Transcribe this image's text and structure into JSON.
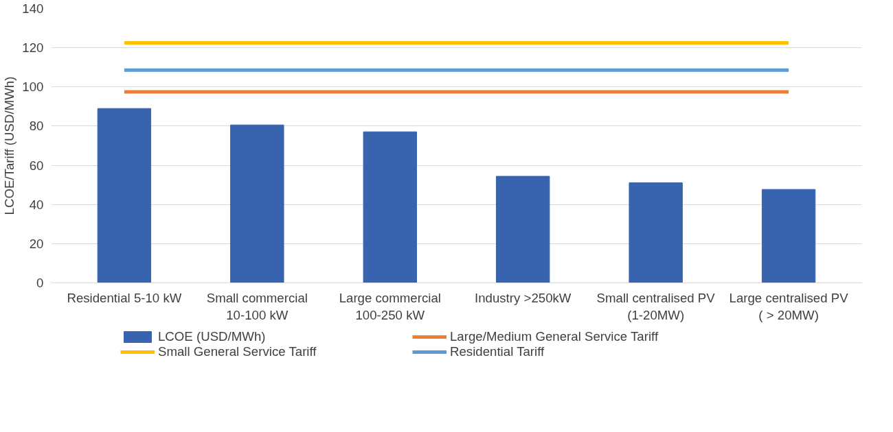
{
  "chart_data": {
    "type": "bar",
    "ylabel": "LCOE/Tariff (USD/MWh)",
    "categories": [
      "Residential 5-10 kW",
      "Small commercial\n10-100 kW",
      "Large commercial\n100-250 kW",
      "Industry >250kW",
      "Small centralised PV\n(1-20MW)",
      "Large centralised PV\n( > 20MW)"
    ],
    "series": [
      {
        "name": "LCOE (USD/MWh)",
        "color": "#3863ae",
        "values": [
          89,
          80.6,
          77.1,
          54.4,
          51.1,
          47.7
        ]
      },
      {
        "name": "Large/Medium General Service Tariff",
        "type": "line",
        "color": "#ed7d31",
        "values": [
          97.5,
          97.5,
          97.5,
          97.5,
          97.5,
          97.5
        ]
      },
      {
        "name": "Small General Service Tariff",
        "type": "line",
        "color": "#ffc000",
        "values": [
          122.5,
          122.5,
          122.5,
          122.5,
          122.5,
          122.5
        ]
      },
      {
        "name": "Residential Tariff",
        "type": "line",
        "color": "#5b9bd5",
        "values": [
          108.6,
          108.6,
          108.6,
          108.6,
          108.6,
          108.6
        ]
      }
    ],
    "ylim": [
      0,
      140
    ],
    "yticks": [
      0,
      20,
      40,
      60,
      80,
      100,
      120,
      140
    ],
    "grid": "y",
    "legend": "bottom",
    "marker": "none",
    "line_style": "solid"
  }
}
